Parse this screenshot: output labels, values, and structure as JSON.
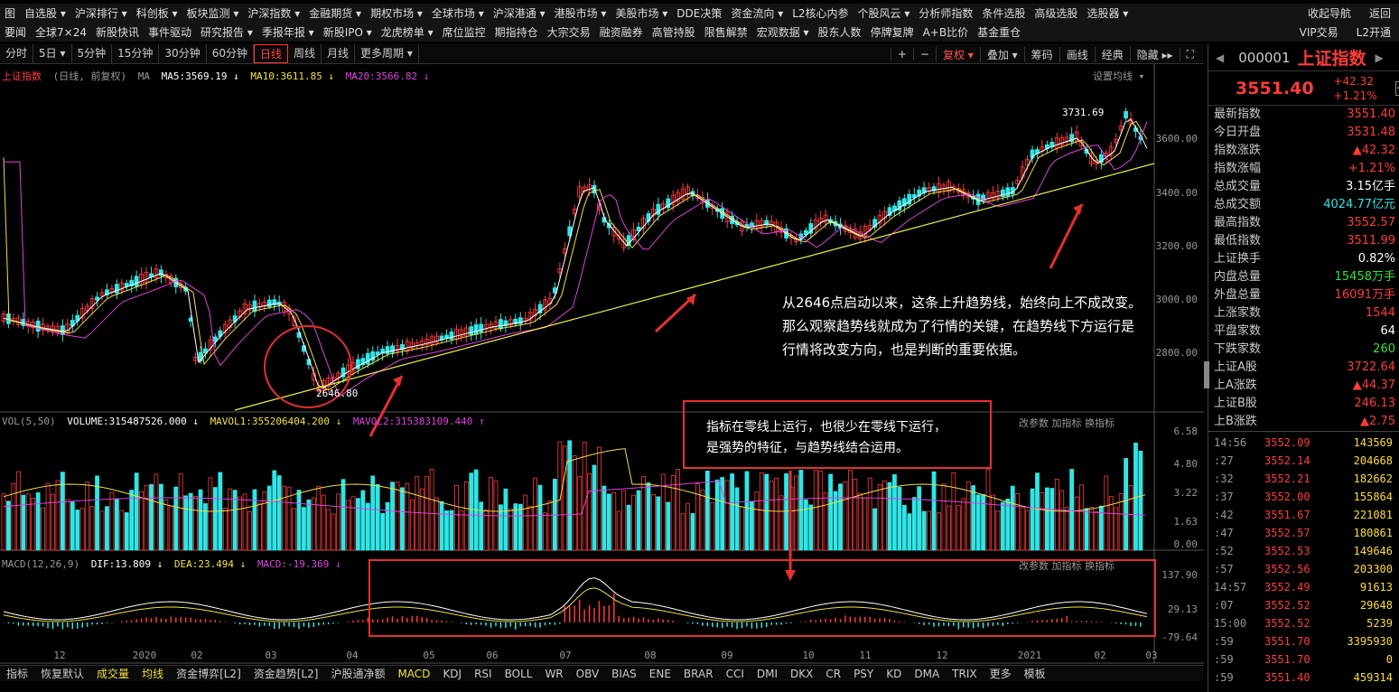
{
  "menu1": {
    "items": [
      "图",
      "自选股 ▾",
      "沪深排行 ▾",
      "科创板 ▾",
      "板块监测 ▾",
      "沪深指数 ▾",
      "金融期货 ▾",
      "期权市场 ▾",
      "全球市场 ▾",
      "沪深港通 ▾",
      "港股市场 ▾",
      "美股市场 ▾",
      "DDE决策",
      "资金流向 ▾",
      "L2核心内参",
      "个股风云 ▾",
      "分析师指数",
      "条件选股",
      "高级选股",
      "选股器 ▾"
    ],
    "right": [
      "收起导航",
      "返回"
    ]
  },
  "menu2": {
    "items": [
      "要闻",
      "全球7×24",
      "新股快讯",
      "事件驱动",
      "研究报告 ▾",
      "季报年报 ▾",
      "新股IPO ▾",
      "龙虎榜单 ▾",
      "席位监控",
      "期指持仓",
      "大宗交易",
      "融资融券",
      "高管持股",
      "限售解禁",
      "宏观数据 ▾",
      "股东人数",
      "停牌复牌",
      "A+B比价",
      "基金重仓"
    ],
    "right": [
      "VIP交易",
      "L2开通"
    ]
  },
  "timeframes": [
    "分时",
    "5日 ▾",
    "5分钟",
    "15分钟",
    "30分钟",
    "60分钟",
    "日线",
    "周线",
    "月线",
    "更多周期 ▾"
  ],
  "active_tf": "日线",
  "tfright": [
    "+",
    "−",
    "复权 ▾",
    "叠加 ▾",
    "筹码",
    "画线",
    "经典",
    "隐藏 ▸▸",
    "⛶"
  ],
  "main_legend": {
    "name": "上证指数",
    "mode": "(日线, 前复权)",
    "ma": "MA",
    "ma5": "MA5:3569.19 ↓",
    "ma10": "MA10:3611.85 ↓",
    "ma20": "MA20:3566.82 ↓",
    "setting": "设置均线 ▾"
  },
  "price_labels": [
    "3600.00",
    "3400.00",
    "3200.00",
    "3000.00",
    "2800.00"
  ],
  "annot_high": "3731.69",
  "annot_low": "2646.80",
  "note1": [
    "从2646点启动以来，这条上升趋势线，始终向上不成改变。",
    "那么观察趋势线就成为了行情的关键，在趋势线下方运行是",
    "行情将改变方向，也是判断的重要依据。"
  ],
  "note2": [
    "指标在零线上运行，也很少在零线下运行，",
    "是强势的特征，与趋势线结合运用。"
  ],
  "vol_legend": {
    "name": "VOL(5,50)",
    "volume": "VOLUME:315487526.000 ↓",
    "mavol1": "MAVOL1:355206404.200 ↓",
    "mavol2": "MAVOL2:315383109.440 ↑",
    "right": "改参数  加指标  换指标"
  },
  "vol_labels": [
    "6.58",
    "4.80",
    "3.22",
    "1.63",
    "0.00"
  ],
  "macd_legend": {
    "name": "MACD(12,26,9)",
    "dif": "DIF:13.809 ↓",
    "dea": "DEA:23.494 ↓",
    "macd": "MACD:-19.369 ↓",
    "right": "改参数  加指标  换指标"
  },
  "macd_labels": [
    "137.90",
    "29.13",
    "-79.64"
  ],
  "x_labels": [
    "12",
    "2020",
    "02",
    "03",
    "04",
    "05",
    "06",
    "07",
    "08",
    "09",
    "10",
    "11",
    "12",
    "2021",
    "02",
    "03"
  ],
  "bottom_tabs": [
    "指标",
    "恢复默认",
    "成交量",
    "均线",
    "资金博弈[L2]",
    "资金趋势[L2]",
    "沪股通净额",
    "MACD",
    "KDJ",
    "RSI",
    "BOLL",
    "WR",
    "OBV",
    "BIAS",
    "ENE",
    "BRAR",
    "CCI",
    "DMI",
    "DKX",
    "CR",
    "PSY",
    "KD",
    "DMA",
    "TRIX",
    "更多",
    "模板"
  ],
  "quote": {
    "code": "000001",
    "name": "上证指数",
    "price": "3551.40",
    "chg": "+42.32",
    "pct": "+1.21%",
    "rows": [
      [
        "最新指数",
        "3551.40",
        "up"
      ],
      [
        "今日开盘",
        "3531.48",
        "up"
      ],
      [
        "指数涨跌",
        "▲42.32",
        "up"
      ],
      [
        "指数涨幅",
        "+1.21%",
        "up"
      ],
      [
        "总成交量",
        "3.15亿手",
        "wh"
      ],
      [
        "总成交额",
        "4024.77亿元",
        "cy"
      ],
      [
        "最高指数",
        "3552.57",
        "up"
      ],
      [
        "最低指数",
        "3511.99",
        "up"
      ],
      [
        "上证换手",
        "0.82%",
        "wh"
      ],
      [
        "内盘总量",
        "15458万手",
        "gr"
      ],
      [
        "外盘总量",
        "16091万手",
        "up"
      ],
      [
        "上涨家数",
        "1544",
        "up"
      ],
      [
        "平盘家数",
        "64",
        "wh"
      ],
      [
        "下跌家数",
        "260",
        "gr"
      ],
      [
        "上证A股",
        "3722.64",
        "up"
      ],
      [
        "上A涨跌",
        "▲44.37",
        "up"
      ],
      [
        "上证B股",
        "246.13",
        "up"
      ],
      [
        "上B涨跌",
        "▲2.75",
        "up"
      ]
    ],
    "ticks": [
      [
        "14:56",
        "3552.09",
        "143569"
      ],
      [
        ":27",
        "3552.14",
        "204668"
      ],
      [
        ":32",
        "3552.21",
        "182662"
      ],
      [
        ":37",
        "3552.00",
        "155864"
      ],
      [
        ":42",
        "3551.67",
        "221081"
      ],
      [
        ":47",
        "3552.57",
        "180861"
      ],
      [
        ":52",
        "3552.53",
        "149646"
      ],
      [
        ":57",
        "3552.56",
        "203300"
      ],
      [
        "14:57",
        "3552.49",
        "91613"
      ],
      [
        ":07",
        "3552.52",
        "29648"
      ],
      [
        "15:00",
        "3552.52",
        "5239"
      ],
      [
        ":59",
        "3551.70",
        "3395930"
      ],
      [
        ":59",
        "3551.70",
        "0"
      ],
      [
        ":59",
        "3551.40",
        "459314"
      ]
    ]
  },
  "colors": {
    "up": "#ff3b3b",
    "down": "#2ee6e6",
    "ma5": "#ffffff",
    "ma10": "#f0e040",
    "ma20": "#e040e0",
    "trend": "#f0f040",
    "box": "#e53030"
  }
}
